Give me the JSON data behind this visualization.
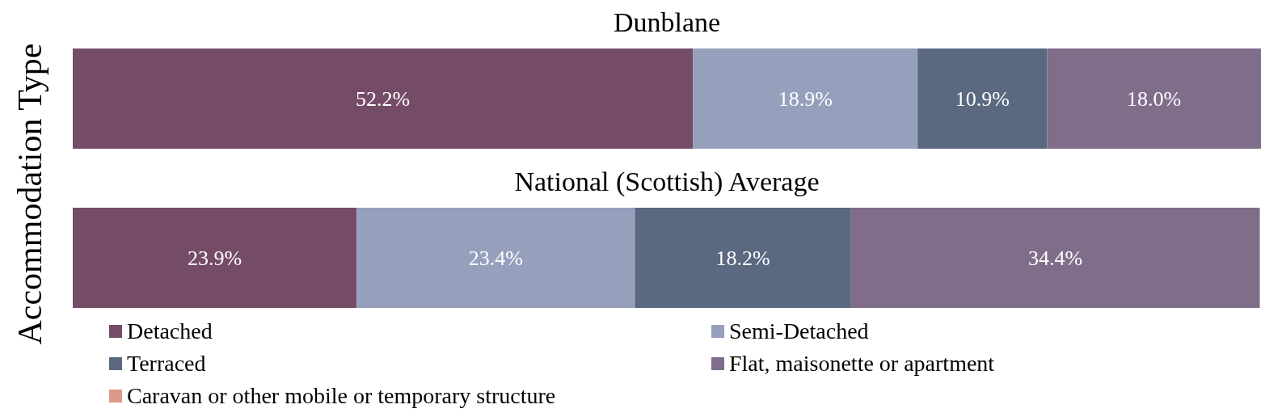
{
  "chart_data": {
    "type": "bar",
    "orientation": "horizontal",
    "stacked": true,
    "ylabel": "Accommodation Type",
    "categories": [
      "Dunblane",
      "National (Scottish) Average"
    ],
    "xlim": [
      0,
      100
    ],
    "tick_labels": "y",
    "legend": "bottom",
    "series": [
      {
        "name": "Detached",
        "color": "#754c67",
        "values": [
          52.2,
          23.9
        ],
        "value_labels": [
          "52.2%",
          "23.9%"
        ]
      },
      {
        "name": "Semi-Detached",
        "color": "#96a0bd",
        "values": [
          18.9,
          23.4
        ],
        "value_labels": [
          "18.9%",
          "23.4%"
        ]
      },
      {
        "name": "Terraced",
        "color": "#5a6880",
        "values": [
          10.9,
          18.2
        ],
        "value_labels": [
          "10.9%",
          "18.2%"
        ]
      },
      {
        "name": "Flat, maisonette or apartment",
        "color": "#7f6d8a",
        "values": [
          18.0,
          34.4
        ],
        "value_labels": [
          "18.0%",
          "34.4%"
        ]
      },
      {
        "name": "Caravan or other mobile or temporary structure",
        "color": "#d99a8a",
        "values": [
          null,
          null
        ],
        "value_labels": [
          null,
          null
        ]
      }
    ]
  }
}
